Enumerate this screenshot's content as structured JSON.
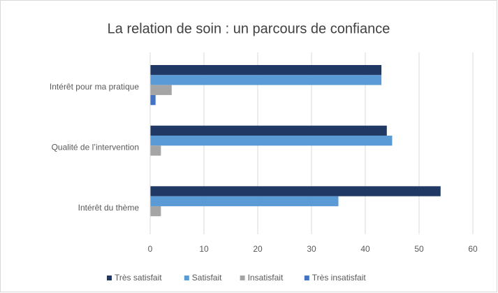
{
  "chart_data": {
    "type": "hbar",
    "title": "La relation de soin : un parcours de confiance",
    "categories": [
      "Intérêt pour ma pratique",
      "Qualité de l’intervention",
      "Intérêt du thème"
    ],
    "series": [
      {
        "name": "Très satisfait",
        "color": "#203864",
        "values": [
          43,
          44,
          54
        ]
      },
      {
        "name": "Satisfait",
        "color": "#5b9bd5",
        "values": [
          43,
          45,
          35
        ]
      },
      {
        "name": "Insatisfait",
        "color": "#a5a5a5",
        "values": [
          4,
          2,
          2
        ]
      },
      {
        "name": "Très insatisfait",
        "color": "#4472c4",
        "values": [
          1,
          0,
          0
        ]
      }
    ],
    "xlim": [
      0,
      60
    ],
    "xticks": [
      0,
      10,
      20,
      30,
      40,
      50,
      60
    ],
    "grid": true,
    "legend": "bottom"
  }
}
